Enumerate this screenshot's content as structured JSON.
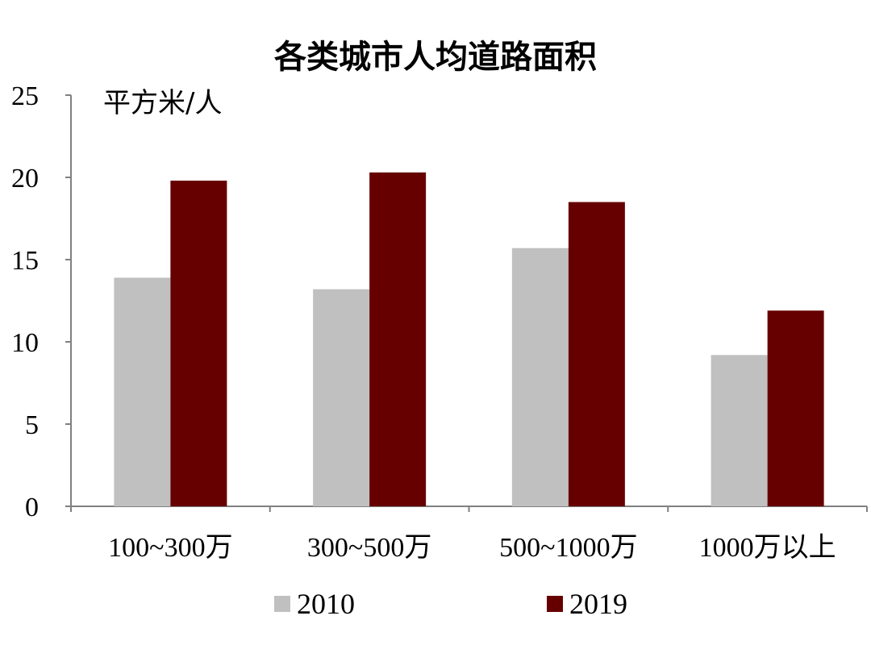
{
  "chart_data": {
    "type": "bar",
    "title": "各类城市人均道路面积",
    "ylabel": "平方米/人",
    "xlabel": "",
    "categories": [
      "100~300万",
      "300~500万",
      "500~1000万",
      "1000万以上"
    ],
    "series": [
      {
        "name": "2010",
        "color": "#c0c0c0",
        "values": [
          13.9,
          13.2,
          15.7,
          9.2
        ]
      },
      {
        "name": "2019",
        "color": "#660000",
        "values": [
          19.8,
          20.3,
          18.5,
          11.9
        ]
      }
    ],
    "ylim": [
      0,
      25
    ],
    "yticks": [
      "0",
      "5",
      "10",
      "15",
      "20",
      "25"
    ],
    "grid": false,
    "legend_position": "bottom"
  }
}
